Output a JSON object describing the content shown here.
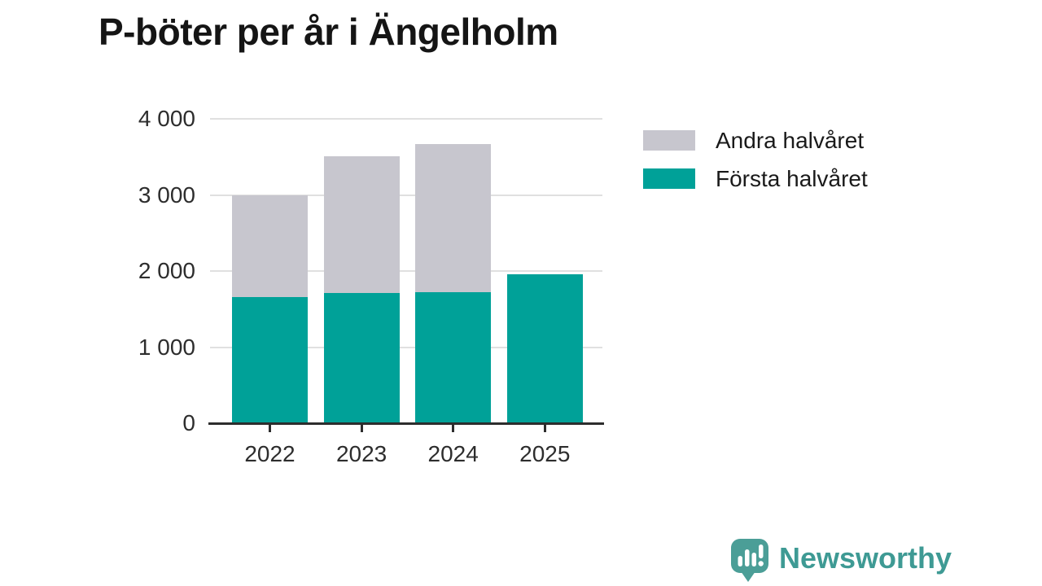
{
  "title": "P-böter per år i Ängelholm",
  "chart_data": {
    "type": "bar",
    "stacked": true,
    "title": "P-böter per år i Ängelholm",
    "categories": [
      "2022",
      "2023",
      "2024",
      "2025"
    ],
    "series": [
      {
        "name": "Första halvåret",
        "color": "#00a198",
        "values": [
          1660,
          1715,
          1725,
          1960
        ]
      },
      {
        "name": "Andra halvåret",
        "color": "#c7c6ce",
        "values": [
          1340,
          1790,
          1945,
          0
        ]
      }
    ],
    "totals": [
      3000,
      3505,
      3670,
      1960
    ],
    "xlabel": "",
    "ylabel": "",
    "ylim": [
      0,
      4000
    ],
    "yticks": [
      {
        "value": 4000,
        "label": "4 000"
      },
      {
        "value": 3000,
        "label": "3 000"
      },
      {
        "value": 2000,
        "label": "2 000"
      },
      {
        "value": 1000,
        "label": "1 000"
      },
      {
        "value": 0,
        "label": "0"
      }
    ],
    "grid": "horizontal-only",
    "legend_position": "right-top"
  },
  "legend": {
    "items": [
      {
        "label": "Andra halvåret",
        "color": "#c7c6ce"
      },
      {
        "label": "Första halvåret",
        "color": "#00a198"
      }
    ]
  },
  "branding": {
    "wordmark": "Newsworthy",
    "icon": "bar-chart-speech-bubble-icon",
    "icon_color": "#4b9e97",
    "text_color": "#3e9a94"
  },
  "colors": {
    "first_half": "#00a198",
    "second_half": "#c7c6ce",
    "axis": "#2d2d2d",
    "grid": "#e0e0e0",
    "title_text": "#151515",
    "background": "#ffffff"
  }
}
